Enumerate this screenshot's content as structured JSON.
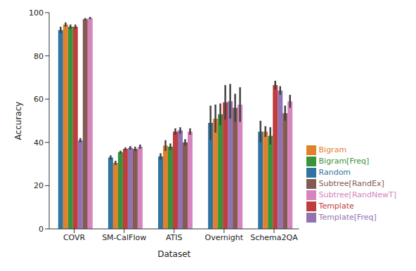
{
  "chart_data": {
    "type": "bar",
    "x_label": "Dataset",
    "y_label": "Accuracy",
    "categories": [
      "COVR",
      "SM-CalFlow",
      "ATIS",
      "Overnight",
      "Schema2QA"
    ],
    "series": [
      {
        "name": "Random",
        "color": "#3274a1",
        "values": [
          92,
          33,
          33.5,
          49,
          45
        ],
        "errors": [
          1.5,
          1,
          1.5,
          8,
          5
        ]
      },
      {
        "name": "Bigram",
        "color": "#e1812c",
        "values": [
          94.5,
          30.5,
          38.5,
          51,
          45
        ],
        "errors": [
          1,
          1,
          2.5,
          6.5,
          2.5
        ]
      },
      {
        "name": "Bigram[Freq]",
        "color": "#3a923a",
        "values": [
          93.5,
          35.5,
          38,
          53,
          43
        ],
        "errors": [
          1,
          0.7,
          1.5,
          5,
          4
        ]
      },
      {
        "name": "Template",
        "color": "#c03d3e",
        "values": [
          93.5,
          37,
          45,
          58.5,
          66.5
        ],
        "errors": [
          1,
          0.7,
          1.5,
          8,
          2
        ]
      },
      {
        "name": "Template[Freq]",
        "color": "#9372b2",
        "values": [
          41,
          37.5,
          45.5,
          59,
          64
        ],
        "errors": [
          1,
          0.8,
          1.5,
          8,
          2
        ]
      },
      {
        "name": "Subtree[RandEx]",
        "color": "#845b53",
        "values": [
          97,
          37,
          40,
          56,
          53.5
        ],
        "errors": [
          0.5,
          1,
          1.5,
          6.5,
          3.5
        ]
      },
      {
        "name": "Subtree[RandNewT]",
        "color": "#d684bd",
        "values": [
          97.5,
          38,
          45,
          57.5,
          59
        ],
        "errors": [
          0.5,
          1,
          1.5,
          8,
          3
        ]
      }
    ],
    "ylim": [
      0,
      100
    ],
    "yticks": [
      0,
      20,
      40,
      60,
      80,
      100
    ],
    "grid": false,
    "legend": "lower right"
  }
}
